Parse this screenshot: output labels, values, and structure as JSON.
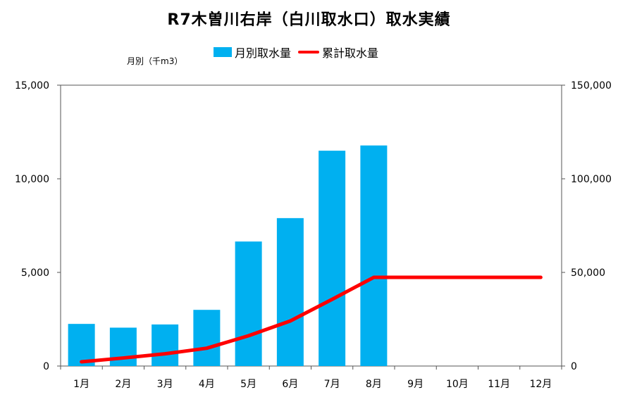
{
  "chart_data": {
    "type": "bar+line",
    "title": "R7木曽川右岸（白川取水口）取水実績",
    "unit_label": "月別（千m3）",
    "categories": [
      "1月",
      "2月",
      "3月",
      "4月",
      "5月",
      "6月",
      "7月",
      "8月",
      "9月",
      "10月",
      "11月",
      "12月"
    ],
    "series": [
      {
        "name": "月別取水量",
        "type": "bar",
        "axis": "left",
        "color": "#00B0F0",
        "values": [
          2250,
          2050,
          2220,
          3000,
          6650,
          7900,
          11500,
          11780,
          null,
          null,
          null,
          null
        ]
      },
      {
        "name": "累計取水量",
        "type": "line",
        "axis": "right",
        "color": "#FF0000",
        "values": [
          2250,
          4300,
          6520,
          9520,
          16170,
          24070,
          35570,
          47350,
          47350,
          47350,
          47350,
          47350
        ]
      }
    ],
    "y_left": {
      "min": 0,
      "max": 15000,
      "ticks": [
        "0",
        "5,000",
        "10,000",
        "15,000"
      ]
    },
    "y_right": {
      "min": 0,
      "max": 150000,
      "ticks": [
        "0",
        "50,000",
        "100,000",
        "150,000"
      ]
    },
    "legend_position": "top"
  }
}
